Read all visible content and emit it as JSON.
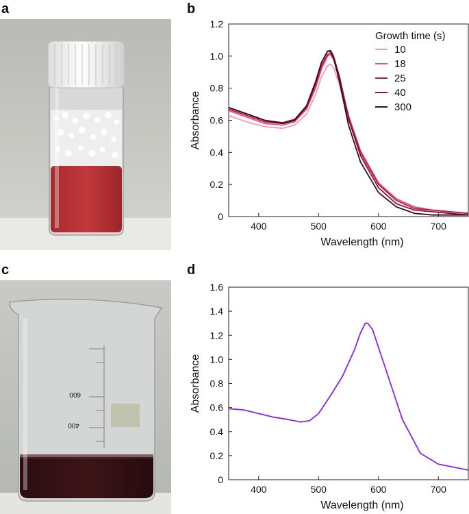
{
  "panels": {
    "a": {
      "letter": "a"
    },
    "b": {
      "letter": "b"
    },
    "c": {
      "letter": "c"
    },
    "d": {
      "letter": "d"
    },
    "beaker_markings": [
      "600",
      "400"
    ]
  },
  "colors": {
    "series_b": [
      "#f29ab5",
      "#e0507a",
      "#b81a4a",
      "#80163a",
      "#3a0a14"
    ],
    "series_d": "#8a1ff0"
  },
  "chart_data": [
    {
      "panel": "b",
      "type": "line",
      "xlabel": "Wavelength (nm)",
      "ylabel": "Absorbance",
      "xlim": [
        350,
        750
      ],
      "ylim": [
        0,
        1.2
      ],
      "xticks": [
        400,
        500,
        600,
        700
      ],
      "yticks": [
        0,
        0.2,
        0.4,
        0.6,
        0.8,
        1.0,
        1.2
      ],
      "yticklabels": [
        "0",
        "0.2",
        "0.4",
        "0.6",
        "0.8",
        "1.0",
        "1.2"
      ],
      "legend_title": "Growth time (s)",
      "legend_position": "top-right",
      "x": [
        350,
        380,
        410,
        440,
        460,
        480,
        495,
        505,
        515,
        520,
        525,
        535,
        550,
        570,
        600,
        630,
        660,
        690,
        720,
        750
      ],
      "series": [
        {
          "name": "10",
          "values": [
            0.63,
            0.59,
            0.56,
            0.55,
            0.57,
            0.64,
            0.76,
            0.87,
            0.94,
            0.95,
            0.93,
            0.82,
            0.6,
            0.4,
            0.21,
            0.11,
            0.06,
            0.04,
            0.03,
            0.02
          ]
        },
        {
          "name": "18",
          "values": [
            0.66,
            0.62,
            0.58,
            0.57,
            0.59,
            0.67,
            0.8,
            0.92,
            1.0,
            1.01,
            0.98,
            0.86,
            0.63,
            0.41,
            0.21,
            0.11,
            0.06,
            0.04,
            0.03,
            0.02
          ]
        },
        {
          "name": "25",
          "values": [
            0.67,
            0.63,
            0.59,
            0.58,
            0.6,
            0.68,
            0.82,
            0.94,
            1.01,
            1.02,
            0.99,
            0.87,
            0.62,
            0.4,
            0.2,
            0.1,
            0.05,
            0.04,
            0.03,
            0.02
          ]
        },
        {
          "name": "40",
          "values": [
            0.68,
            0.64,
            0.6,
            0.585,
            0.605,
            0.69,
            0.84,
            0.96,
            1.03,
            1.035,
            1.0,
            0.87,
            0.61,
            0.38,
            0.18,
            0.08,
            0.04,
            0.03,
            0.02,
            0.01
          ]
        },
        {
          "name": "300",
          "values": [
            0.68,
            0.64,
            0.6,
            0.58,
            0.6,
            0.69,
            0.84,
            0.96,
            1.03,
            1.03,
            0.99,
            0.84,
            0.57,
            0.34,
            0.15,
            0.06,
            0.02,
            0.01,
            0.01,
            0.01
          ]
        }
      ]
    },
    {
      "panel": "d",
      "type": "line",
      "xlabel": "Wavelength (nm)",
      "ylabel": "Absorbance",
      "xlim": [
        350,
        750
      ],
      "ylim": [
        0,
        1.6
      ],
      "xticks": [
        400,
        500,
        600,
        700
      ],
      "yticks": [
        0,
        0.2,
        0.4,
        0.6,
        0.8,
        1.0,
        1.2,
        1.4,
        1.6
      ],
      "yticklabels": [
        "0",
        "0.2",
        "0.4",
        "0.6",
        "0.8",
        "1.0",
        "1.2",
        "1.4",
        "1.6"
      ],
      "x": [
        350,
        375,
        400,
        425,
        450,
        470,
        485,
        500,
        520,
        540,
        560,
        570,
        578,
        582,
        590,
        600,
        620,
        640,
        670,
        700,
        730,
        750
      ],
      "series": [
        {
          "values": [
            0.59,
            0.58,
            0.55,
            0.52,
            0.5,
            0.48,
            0.49,
            0.55,
            0.7,
            0.86,
            1.08,
            1.22,
            1.3,
            1.3,
            1.25,
            1.1,
            0.8,
            0.5,
            0.22,
            0.13,
            0.1,
            0.08
          ]
        }
      ]
    }
  ]
}
